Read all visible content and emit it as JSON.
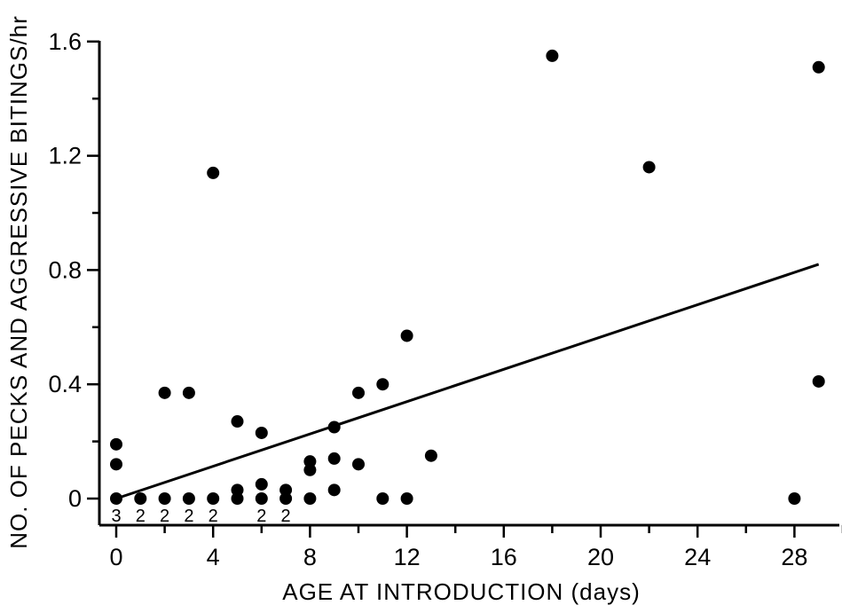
{
  "chart_data": {
    "type": "scatter",
    "title": "",
    "xlabel": "AGE AT INTRODUCTION (days)",
    "ylabel": "NO. OF PECKS AND AGGRESSIVE BITINGS/hr",
    "xlim": [
      0,
      30
    ],
    "ylim": [
      0,
      1.6
    ],
    "x_ticks": [
      0,
      4,
      8,
      12,
      16,
      20,
      24,
      28
    ],
    "x_tick_labels": [
      "0",
      "4",
      "8",
      "12",
      "16",
      "20",
      "24",
      "28"
    ],
    "y_ticks": [
      0,
      0.4,
      0.8,
      1.2,
      1.6
    ],
    "y_tick_labels": [
      "0",
      "0.4",
      "0.8",
      "1.2",
      "1.6"
    ],
    "grid": false,
    "legend": "none",
    "series": [
      {
        "points": [
          {
            "x": 0,
            "y": 0.19
          },
          {
            "x": 0,
            "y": 0.12
          },
          {
            "x": 0,
            "y": 0
          },
          {
            "x": 1,
            "y": 0
          },
          {
            "x": 2,
            "y": 0.37
          },
          {
            "x": 2,
            "y": 0
          },
          {
            "x": 3,
            "y": 0.37
          },
          {
            "x": 3,
            "y": 0
          },
          {
            "x": 4,
            "y": 1.14
          },
          {
            "x": 4,
            "y": 0
          },
          {
            "x": 5,
            "y": 0.27
          },
          {
            "x": 5,
            "y": 0.03
          },
          {
            "x": 5,
            "y": 0
          },
          {
            "x": 6,
            "y": 0.23
          },
          {
            "x": 6,
            "y": 0.05
          },
          {
            "x": 6,
            "y": 0
          },
          {
            "x": 7,
            "y": 0.03
          },
          {
            "x": 7,
            "y": 0
          },
          {
            "x": 8,
            "y": 0.13
          },
          {
            "x": 8,
            "y": 0.1
          },
          {
            "x": 8,
            "y": 0
          },
          {
            "x": 9,
            "y": 0.25
          },
          {
            "x": 9,
            "y": 0.14
          },
          {
            "x": 9,
            "y": 0.03
          },
          {
            "x": 10,
            "y": 0.37
          },
          {
            "x": 10,
            "y": 0.12
          },
          {
            "x": 11,
            "y": 0.4
          },
          {
            "x": 11,
            "y": 0
          },
          {
            "x": 12,
            "y": 0.57
          },
          {
            "x": 12,
            "y": 0
          },
          {
            "x": 13,
            "y": 0.15
          },
          {
            "x": 18,
            "y": 1.55
          },
          {
            "x": 22,
            "y": 1.16
          },
          {
            "x": 28,
            "y": 0
          },
          {
            "x": 29,
            "y": 1.51
          },
          {
            "x": 29,
            "y": 0.41
          }
        ]
      }
    ],
    "trend_line": {
      "x": [
        0,
        29
      ],
      "y": [
        0,
        0.82
      ]
    },
    "count_annotations": [
      {
        "x": 0,
        "label": "3"
      },
      {
        "x": 1,
        "label": "2"
      },
      {
        "x": 2,
        "label": "2"
      },
      {
        "x": 3,
        "label": "2"
      },
      {
        "x": 4,
        "label": "2"
      },
      {
        "x": 6,
        "label": "2"
      },
      {
        "x": 7,
        "label": "2"
      }
    ],
    "colors": {
      "points": "#000000",
      "line": "#000000",
      "background": "#ffffff"
    }
  }
}
